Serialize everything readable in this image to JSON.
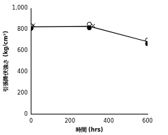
{
  "chart_data": {
    "type": "scatter",
    "x_label": "時間 (hrs)",
    "y_label": "引張降伏強さ (kg/cm²)",
    "series": [
      {
        "type": "line",
        "color": "#000000",
        "line_style": "solid",
        "x": [
          0,
          300,
          600
        ],
        "values": [
          825,
          830,
          685
        ]
      },
      {
        "type": "scatter",
        "color": "#000000",
        "marker": "circle_filled",
        "x": [
          0,
          300,
          600
        ],
        "values": [
          810,
          815,
          665
        ]
      },
      {
        "type": "scatter",
        "color": "#000000",
        "marker": "circle_open",
        "x": [
          0,
          300,
          600
        ],
        "values": [
          825,
          850,
          700
        ]
      },
      {
        "type": "scatter",
        "color": "#000000",
        "marker": "cross",
        "x": [
          12,
          320
        ],
        "values": [
          840,
          835
        ]
      }
    ],
    "xlim": [
      0,
      600
    ],
    "xticks": [
      0,
      200,
      400,
      600
    ],
    "ylim": [
      0,
      1000
    ],
    "yticks": [
      0,
      200,
      400,
      600,
      800,
      {
        "value": 1000,
        "label": "1,000"
      }
    ],
    "grid": false
  }
}
